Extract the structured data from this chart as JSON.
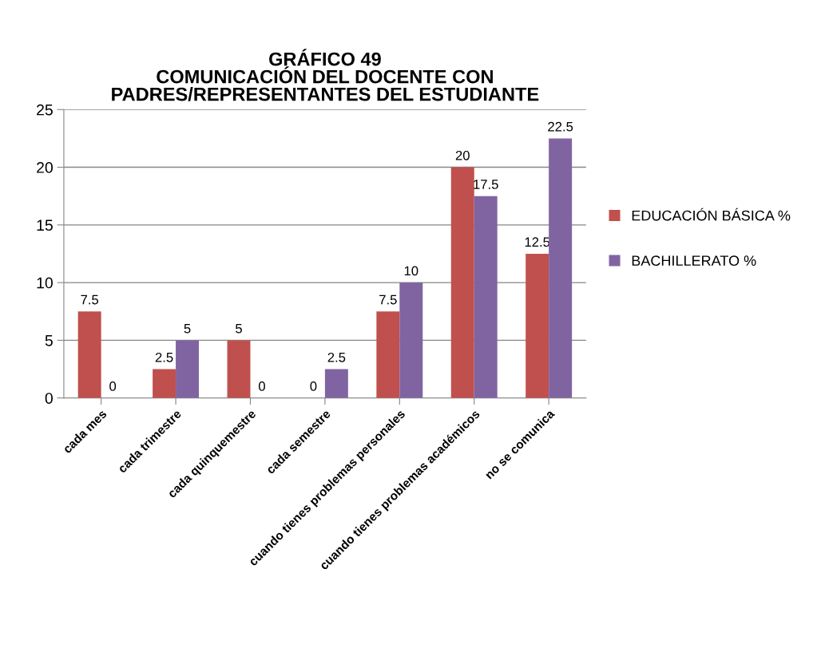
{
  "chart_data": {
    "type": "bar",
    "title": "GRÁFICO 49\nCOMUNICACIÓN DEL DOCENTE CON\nPADRES/REPRESENTANTES DEL ESTUDIANTE",
    "categories": [
      "cada mes",
      "cada trimestre",
      "cada quinquemestre",
      "cada semestre",
      "cuando tienes problemas personales",
      "cuando tienes problemas académicos",
      "no se comunica"
    ],
    "series": [
      {
        "name": "EDUCACIÓN BÁSICA %",
        "color": "#c0504d",
        "values": [
          7.5,
          2.5,
          5,
          0,
          7.5,
          20,
          12.5
        ]
      },
      {
        "name": "BACHILLERATO %",
        "color": "#8064a2",
        "values": [
          0,
          5,
          0,
          2.5,
          10,
          17.5,
          22.5
        ]
      }
    ],
    "ylim": [
      0,
      25
    ],
    "yticks": [
      0,
      5,
      10,
      15,
      20,
      25
    ],
    "grid": "y",
    "legend": "right",
    "data_labels": true
  }
}
